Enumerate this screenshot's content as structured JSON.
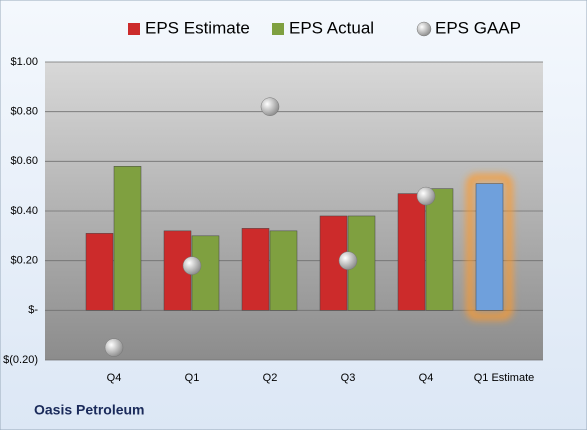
{
  "chart_data": {
    "type": "bar",
    "footer": "Oasis Petroleum",
    "categories": [
      "Q4",
      "Q1",
      "Q2",
      "Q3",
      "Q4",
      "Q1 Estimate"
    ],
    "series": [
      {
        "name": "EPS Estimate",
        "color": "#cc2b2b",
        "point_colors": [
          "#cc2b2b",
          "#cc2b2b",
          "#cc2b2b",
          "#cc2b2b",
          "#cc2b2b",
          "#6fa0dc"
        ],
        "values": [
          0.31,
          0.32,
          0.33,
          0.38,
          0.47,
          0.51
        ]
      },
      {
        "name": "EPS Actual",
        "color": "#7fa040",
        "values": [
          0.58,
          0.3,
          0.32,
          0.38,
          0.49,
          null
        ]
      },
      {
        "name": "EPS GAAP",
        "color": "#a8a8a8",
        "mark": "circle",
        "values": [
          -0.15,
          0.18,
          0.82,
          0.2,
          0.46,
          null
        ]
      }
    ],
    "ylim": [
      -0.2,
      1.0
    ],
    "yticks": [
      {
        "value": -0.2,
        "label": "$(0.20)"
      },
      {
        "value": 0,
        "label": "$-"
      },
      {
        "value": 0.2,
        "label": "$0.20"
      },
      {
        "value": 0.4,
        "label": "$0.40"
      },
      {
        "value": 0.6,
        "label": "$0.60"
      },
      {
        "value": 0.8,
        "label": "$0.80"
      },
      {
        "value": 1.0,
        "label": "$1.00"
      }
    ],
    "grid": true,
    "legend": "top"
  }
}
